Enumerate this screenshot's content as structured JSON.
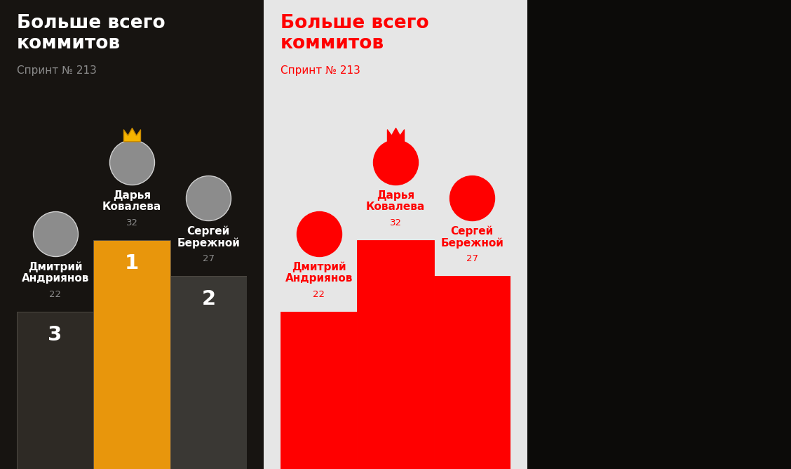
{
  "chart_data": {
    "type": "bar",
    "title": "Больше всего\nкоммитов",
    "subtitle": "Спринт № 213",
    "categories": [
      "Дмитрий\nАндриянов",
      "Дарья\nКовалева",
      "Сергей\nБережной"
    ],
    "values": [
      22,
      32,
      27
    ],
    "ranks": [
      3,
      1,
      2
    ],
    "colors": [
      "#2e2a25",
      "#e8960c",
      "#3a3834"
    ],
    "ylim": [
      0,
      60
    ],
    "tick_labels": false,
    "data_labels": true
  }
}
